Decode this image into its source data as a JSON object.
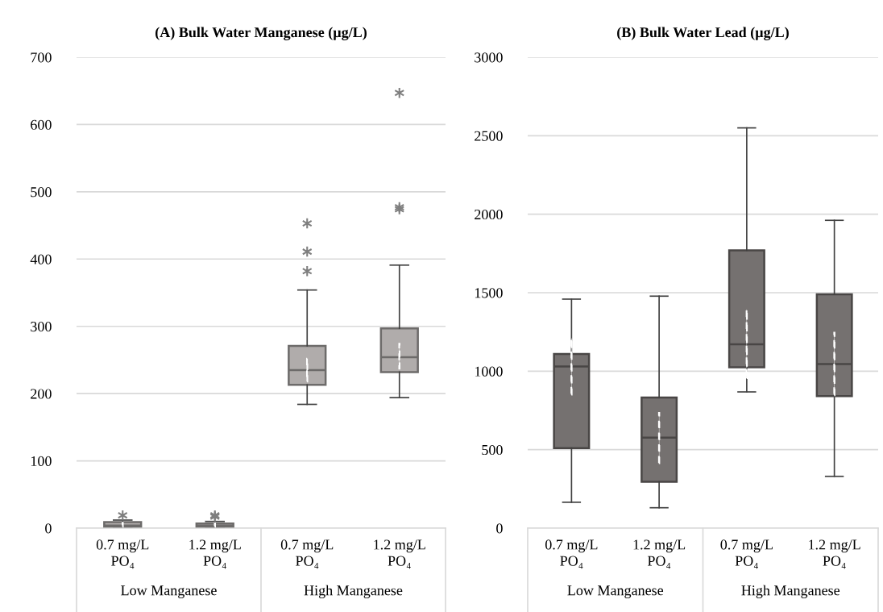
{
  "chart_data": [
    {
      "type": "box",
      "title": "(A) Bulk Water Manganese (µg/L)",
      "categories": [
        "0.7 mg/L\nPO₄",
        "1.2 mg/L\nPO₄",
        "0.7 mg/L\nPO₄",
        "1.2 mg/L\nPO₄"
      ],
      "annotations": [
        "Low Manganese",
        "High Manganese"
      ],
      "ylim": [
        0,
        700
      ],
      "yticks": [
        0,
        100,
        200,
        300,
        400,
        500,
        600,
        700
      ],
      "grid": "y",
      "series": [
        {
          "color": "#b0acab",
          "boxes": [
            {
              "low": 0,
              "q1": 1,
              "median": 4,
              "q3": 9,
              "high": 12,
              "outliers": [
                19
              ]
            },
            {
              "low": 0,
              "q1": 1,
              "median": 4,
              "q3": 7,
              "high": 10,
              "outliers": [
                17,
                19
              ]
            },
            {
              "low": 184,
              "q1": 213,
              "median": 235,
              "q3": 271,
              "high": 354,
              "outliers": [
                382,
                411,
                453
              ]
            },
            {
              "low": 194,
              "q1": 232,
              "median": 254,
              "q3": 297,
              "high": 391,
              "outliers": [
                474,
                477,
                647
              ]
            }
          ]
        },
        {
          "type": "bar",
          "line_style": "dashed",
          "color": "#ffffff",
          "base": [
            2,
            2,
            218,
            237
          ],
          "values": [
            6,
            5,
            34,
            37
          ]
        }
      ]
    },
    {
      "type": "box",
      "title": "(B) Bulk Water Lead (µg/L)",
      "categories": [
        "0.7 mg/L\nPO₄",
        "1.2 mg/L\nPO₄",
        "0.7 mg/L\nPO₄",
        "1.2 mg/L\nPO₄"
      ],
      "annotations": [
        "Low Manganese",
        "High Manganese"
      ],
      "ylim": [
        0,
        3000
      ],
      "yticks": [
        0,
        500,
        1000,
        1500,
        2000,
        2500,
        3000
      ],
      "grid": "y",
      "series": [
        {
          "color": "#757170",
          "boxes": [
            {
              "low": 165,
              "q1": 510,
              "median": 1030,
              "q3": 1110,
              "high": 1459
            },
            {
              "low": 130,
              "q1": 296,
              "median": 576,
              "q3": 832,
              "high": 1478
            },
            {
              "low": 868,
              "q1": 1025,
              "median": 1171,
              "q3": 1770,
              "high": 2550
            },
            {
              "low": 330,
              "q1": 841,
              "median": 1045,
              "q3": 1490,
              "high": 1961
            }
          ]
        },
        {
          "type": "bar",
          "line_style": "dashed",
          "color": "#ffffff",
          "base": [
            850,
            414,
            956,
            847
          ],
          "values": [
            360,
            320,
            438,
            398
          ]
        }
      ]
    }
  ]
}
